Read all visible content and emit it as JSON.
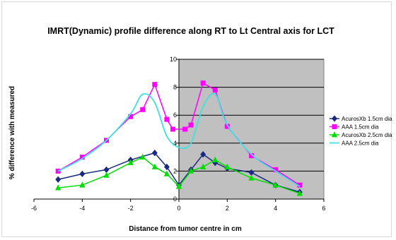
{
  "chart_data": {
    "type": "line",
    "title": "IMRT(Dynamic) profile difference along RT to Lt Central axis for LCT",
    "xlabel": "Distance from tumor centre in cm",
    "ylabel": "% difference with measured",
    "xlim": [
      -6,
      6
    ],
    "ylim": [
      0,
      10
    ],
    "xticks": [
      -6,
      -4,
      -2,
      0,
      2,
      4,
      6
    ],
    "yticks": [
      0,
      2,
      4,
      6,
      8,
      10
    ],
    "grid": "horizontal",
    "legend_position": "right",
    "plot_background": "#c0c0c0",
    "series": [
      {
        "name": "AcurosXb 1.5cm dia",
        "color": "#1a2a80",
        "marker": "diamond",
        "smooth": false,
        "points": [
          [
            -5,
            1.4
          ],
          [
            -4,
            1.8
          ],
          [
            -3,
            2.1
          ],
          [
            -2,
            2.8
          ],
          [
            -1,
            3.3
          ],
          [
            -0.5,
            2.3
          ],
          [
            0,
            1.0
          ],
          [
            0.5,
            2.1
          ],
          [
            1,
            3.2
          ],
          [
            1.5,
            2.6
          ],
          [
            2,
            2.2
          ],
          [
            3,
            1.9
          ],
          [
            4,
            1.0
          ],
          [
            5,
            0.5
          ]
        ]
      },
      {
        "name": "AAA 1.5cm dia",
        "color": "#ff00ff",
        "marker": "square",
        "smooth": false,
        "points": [
          [
            -5,
            2.0
          ],
          [
            -4,
            3.0
          ],
          [
            -3,
            4.2
          ],
          [
            -2,
            5.9
          ],
          [
            -1.5,
            6.4
          ],
          [
            -1,
            8.2
          ],
          [
            -0.5,
            5.7
          ],
          [
            -0.25,
            5.0
          ],
          [
            0.25,
            5.0
          ],
          [
            0.5,
            5.3
          ],
          [
            1,
            8.3
          ],
          [
            1.5,
            7.8
          ],
          [
            2,
            5.2
          ],
          [
            3,
            3.1
          ],
          [
            4,
            2.1
          ],
          [
            5,
            1.0
          ]
        ]
      },
      {
        "name": "AcurosXb 2.5cm dia",
        "color": "#00dd00",
        "marker": "triangle",
        "smooth": false,
        "points": [
          [
            -5,
            0.8
          ],
          [
            -4,
            1.0
          ],
          [
            -3,
            1.7
          ],
          [
            -2,
            2.6
          ],
          [
            -1.5,
            3.0
          ],
          [
            -1,
            2.3
          ],
          [
            -0.5,
            1.8
          ],
          [
            0,
            0.9
          ],
          [
            0.5,
            2.0
          ],
          [
            1,
            2.3
          ],
          [
            1.5,
            2.8
          ],
          [
            2,
            2.3
          ],
          [
            3,
            1.5
          ],
          [
            4,
            1.0
          ],
          [
            5,
            0.4
          ]
        ]
      },
      {
        "name": "AAA 2.5cm dia",
        "color": "#40e0e0",
        "marker": "none",
        "smooth": true,
        "points": [
          [
            -5,
            2.0
          ],
          [
            -4,
            2.9
          ],
          [
            -3,
            4.2
          ],
          [
            -2,
            6.1
          ],
          [
            -1.5,
            7.5
          ],
          [
            -1,
            6.9
          ],
          [
            -0.5,
            4.5
          ],
          [
            0,
            3.7
          ],
          [
            0.5,
            4.0
          ],
          [
            1,
            6.6
          ],
          [
            1.5,
            7.5
          ],
          [
            2,
            5.3
          ],
          [
            3,
            3.2
          ],
          [
            4,
            2.0
          ],
          [
            5,
            0.9
          ]
        ]
      }
    ]
  }
}
